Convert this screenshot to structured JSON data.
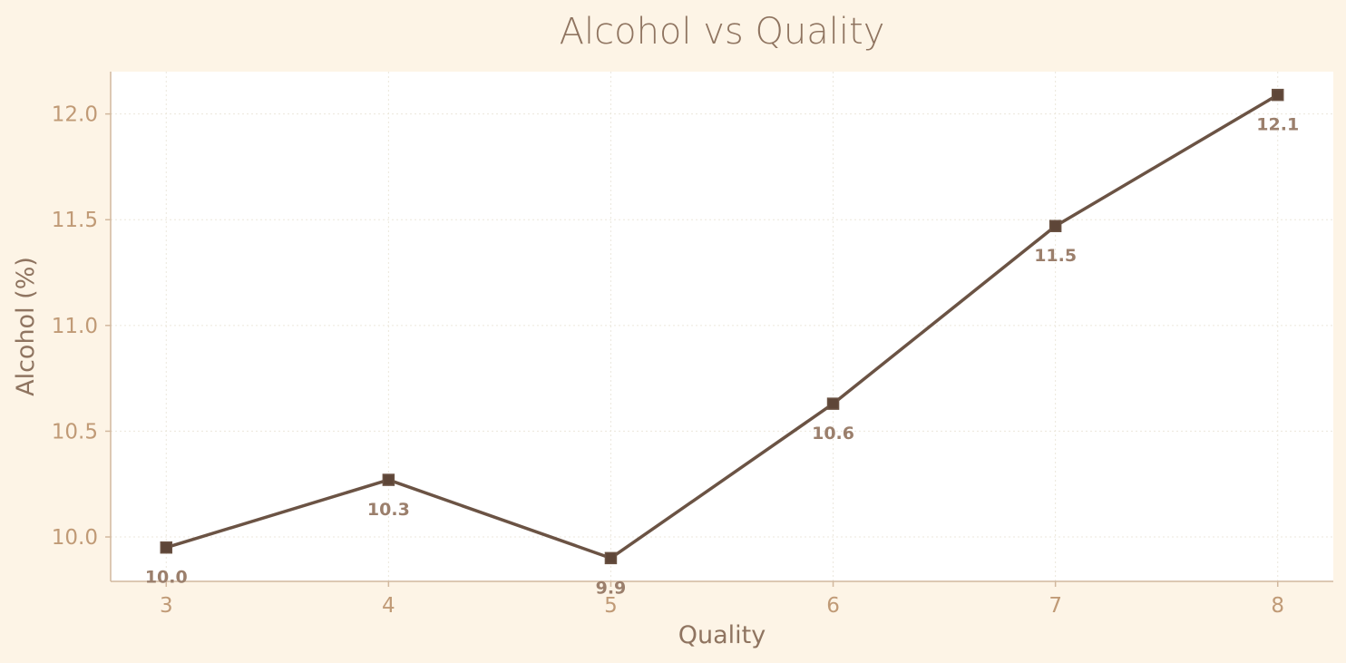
{
  "colors": {
    "page_background": "#fdf4e6",
    "plot_background": "#ffffff",
    "line": "#6b5344",
    "marker": "#5e4638",
    "title": "#8f7460",
    "axis_label": "#8f7460",
    "tick_label": "#c09a76",
    "data_label": "#9b7f6c",
    "spine": "#d2b89e",
    "grid": "#ece7dc"
  },
  "chart_data": {
    "type": "line",
    "title": "Alcohol vs Quality",
    "xlabel": "Quality",
    "ylabel": "Alcohol (%)",
    "x": [
      3,
      4,
      5,
      6,
      7,
      8
    ],
    "y": [
      9.95,
      10.27,
      9.9,
      10.63,
      11.47,
      12.09
    ],
    "data_labels": [
      "10.0",
      "10.3",
      "9.9",
      "10.6",
      "11.5",
      "12.1"
    ],
    "xticks": [
      3,
      4,
      5,
      6,
      7,
      8
    ],
    "xtick_labels": [
      "3",
      "4",
      "5",
      "6",
      "7",
      "8"
    ],
    "yticks": [
      10.0,
      10.5,
      11.0,
      11.5,
      12.0
    ],
    "ytick_labels": [
      "10.0",
      "10.5",
      "11.0",
      "11.5",
      "12.0"
    ],
    "xlim": [
      2.75,
      8.25
    ],
    "ylim": [
      9.79,
      12.2
    ],
    "grid": true,
    "marker": "square",
    "legend": "none"
  }
}
